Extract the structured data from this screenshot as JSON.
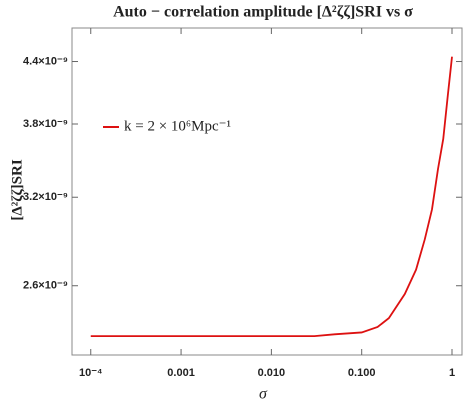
{
  "chart_data": {
    "type": "line",
    "title": "Auto − correlation amplitude [Δ²ζζ]SRI vs σ",
    "x_label": "σ",
    "y_label": "[Δ²ζζ]SRI",
    "x": [
      0.0001,
      0.001,
      0.01,
      0.03,
      0.05,
      0.1,
      0.15,
      0.2,
      0.3,
      0.4,
      0.5,
      0.6,
      0.7,
      0.8,
      0.9,
      1
    ],
    "series": [
      {
        "name": "k = 2 × 10⁶Mpc⁻¹",
        "color": "#dd1111",
        "values": [
          2.31e-09,
          2.31e-09,
          2.31e-09,
          2.31e-09,
          2.32e-09,
          2.33e-09,
          2.36e-09,
          2.41e-09,
          2.55e-09,
          2.7e-09,
          2.9e-09,
          3.11e-09,
          3.42e-09,
          3.67e-09,
          4.07e-09,
          4.45e-09
        ]
      }
    ],
    "xlim": [
      6.2e-05,
      1.29
    ],
    "ylim": [
      2.21e-09,
      4.76e-09
    ],
    "x_log": true,
    "y_log": true,
    "xticks": [
      {
        "value": 0.0001,
        "label": "10⁻⁴"
      },
      0.001,
      {
        "value": 0.01,
        "label": "0.010"
      },
      {
        "value": 0.1,
        "label": "0.100"
      },
      1
    ],
    "yticks": [
      {
        "value": 2.6e-09,
        "label": "2.6×10⁻⁹"
      },
      {
        "value": 3.2e-09,
        "label": "3.2×10⁻⁹"
      },
      {
        "value": 3.8e-09,
        "label": "3.8×10⁻⁹"
      },
      {
        "value": 4.4e-09,
        "label": "4.4×10⁻⁹"
      }
    ]
  }
}
